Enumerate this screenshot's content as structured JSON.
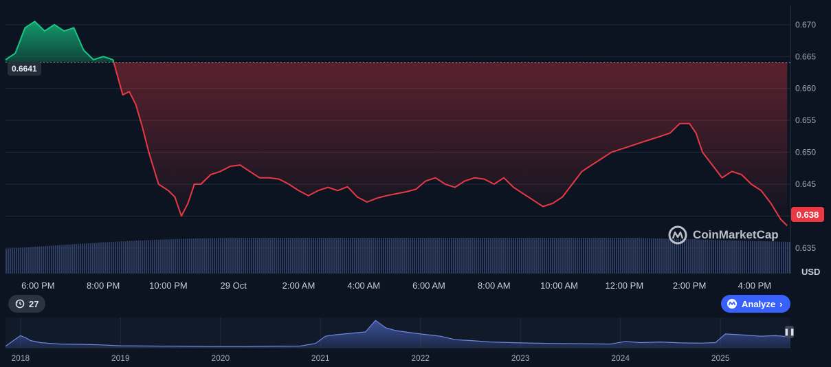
{
  "chart_data": [
    {
      "type": "line",
      "currency": "USD",
      "reference_price": 0.6641,
      "reference_label": "0.6641",
      "current_price_label": "0.638",
      "ylim": [
        0.631,
        0.673
      ],
      "y_ticks": [
        "0.670",
        "0.665",
        "0.660",
        "0.655",
        "0.650",
        "0.645",
        "0.640",
        "0.635"
      ],
      "y_tick_values": [
        0.67,
        0.665,
        0.66,
        0.655,
        0.65,
        0.645,
        0.64,
        0.635
      ],
      "x_ticks": [
        "6:00 PM",
        "8:00 PM",
        "10:00 PM",
        "29 Oct",
        "2:00 AM",
        "4:00 AM",
        "6:00 AM",
        "8:00 AM",
        "10:00 AM",
        "12:00 PM",
        "2:00 PM",
        "4:00 PM"
      ],
      "x_tick_hours": [
        1,
        3,
        5,
        7,
        9,
        11,
        13,
        15,
        17,
        19,
        21,
        23
      ],
      "xlim_hours": [
        0,
        24.1
      ],
      "series": [
        {
          "x_hours": [
            0.0,
            0.3,
            0.6,
            0.9,
            1.2,
            1.5,
            1.8,
            2.1,
            2.4,
            2.7,
            3.0,
            3.3,
            3.6,
            3.8,
            4.0,
            4.2,
            4.4,
            4.7,
            5.0,
            5.2,
            5.4,
            5.6,
            5.8,
            6.0,
            6.3,
            6.6,
            6.9,
            7.2,
            7.5,
            7.8,
            8.1,
            8.4,
            8.7,
            9.0,
            9.3,
            9.6,
            9.9,
            10.2,
            10.5,
            10.8,
            11.1,
            11.4,
            11.7,
            12.0,
            12.3,
            12.6,
            12.9,
            13.2,
            13.5,
            13.8,
            14.1,
            14.4,
            14.7,
            15.0,
            15.3,
            15.6,
            15.9,
            16.2,
            16.5,
            16.8,
            17.1,
            17.4,
            17.7,
            18.0,
            18.3,
            18.6,
            18.9,
            19.2,
            19.5,
            19.8,
            20.1,
            20.4,
            20.7,
            21.0,
            21.2,
            21.4,
            21.7,
            22.0,
            22.3,
            22.6,
            22.9,
            23.2,
            23.5,
            23.8,
            24.0
          ],
          "values": [
            0.6645,
            0.6655,
            0.6695,
            0.6705,
            0.669,
            0.67,
            0.669,
            0.6695,
            0.666,
            0.6645,
            0.665,
            0.6645,
            0.659,
            0.6595,
            0.6575,
            0.654,
            0.65,
            0.645,
            0.644,
            0.643,
            0.64,
            0.642,
            0.645,
            0.645,
            0.6465,
            0.647,
            0.6478,
            0.648,
            0.647,
            0.646,
            0.646,
            0.6458,
            0.645,
            0.644,
            0.6432,
            0.644,
            0.6445,
            0.644,
            0.6446,
            0.643,
            0.6422,
            0.6428,
            0.6432,
            0.6435,
            0.6438,
            0.6442,
            0.6455,
            0.646,
            0.645,
            0.6445,
            0.6455,
            0.646,
            0.6458,
            0.645,
            0.646,
            0.6445,
            0.6435,
            0.6425,
            0.6415,
            0.642,
            0.643,
            0.645,
            0.647,
            0.648,
            0.649,
            0.65,
            0.6505,
            0.651,
            0.6515,
            0.652,
            0.6525,
            0.653,
            0.6545,
            0.6545,
            0.653,
            0.65,
            0.648,
            0.646,
            0.647,
            0.6465,
            0.645,
            0.644,
            0.642,
            0.6395,
            0.6385
          ]
        }
      ]
    },
    {
      "type": "area",
      "role": "range-navigator",
      "x_ticks": [
        "2018",
        "2019",
        "2020",
        "2021",
        "2022",
        "2023",
        "2024",
        "2025"
      ],
      "x_tick_years": [
        2018,
        2019,
        2020,
        2021,
        2022,
        2023,
        2024,
        2025
      ],
      "xlim_years": [
        2017.85,
        2025.7
      ],
      "ylim": [
        0,
        1.05
      ],
      "series": [
        {
          "x_years": [
            2017.85,
            2017.95,
            2018.0,
            2018.05,
            2018.1,
            2018.2,
            2018.3,
            2018.4,
            2018.6,
            2018.8,
            2019.0,
            2019.3,
            2019.6,
            2020.0,
            2020.2,
            2020.5,
            2020.8,
            2020.95,
            2021.05,
            2021.15,
            2021.3,
            2021.45,
            2021.55,
            2021.65,
            2021.75,
            2021.85,
            2022.0,
            2022.2,
            2022.35,
            2022.5,
            2022.7,
            2023.0,
            2023.3,
            2023.6,
            2023.9,
            2024.05,
            2024.2,
            2024.4,
            2024.6,
            2024.8,
            2024.95,
            2025.05,
            2025.2,
            2025.4,
            2025.55,
            2025.7
          ],
          "values": [
            0.05,
            0.3,
            0.42,
            0.35,
            0.25,
            0.18,
            0.15,
            0.13,
            0.12,
            0.1,
            0.07,
            0.06,
            0.05,
            0.04,
            0.04,
            0.05,
            0.06,
            0.15,
            0.4,
            0.45,
            0.5,
            0.55,
            0.95,
            0.7,
            0.6,
            0.55,
            0.48,
            0.4,
            0.28,
            0.25,
            0.2,
            0.17,
            0.15,
            0.14,
            0.13,
            0.22,
            0.18,
            0.2,
            0.17,
            0.16,
            0.18,
            0.48,
            0.45,
            0.4,
            0.42,
            0.38
          ]
        }
      ]
    }
  ],
  "watermark": "CoinMarketCap",
  "history_count": "27",
  "analyze_label": "Analyze",
  "analyze_chevron": "›",
  "colors": {
    "up": "#16c784",
    "down": "#ea3943",
    "background": "#0d1421",
    "grid": "#222b3b",
    "volume": "#3b4a78",
    "navigator": "#4a64c0",
    "accent": "#3861fb"
  }
}
